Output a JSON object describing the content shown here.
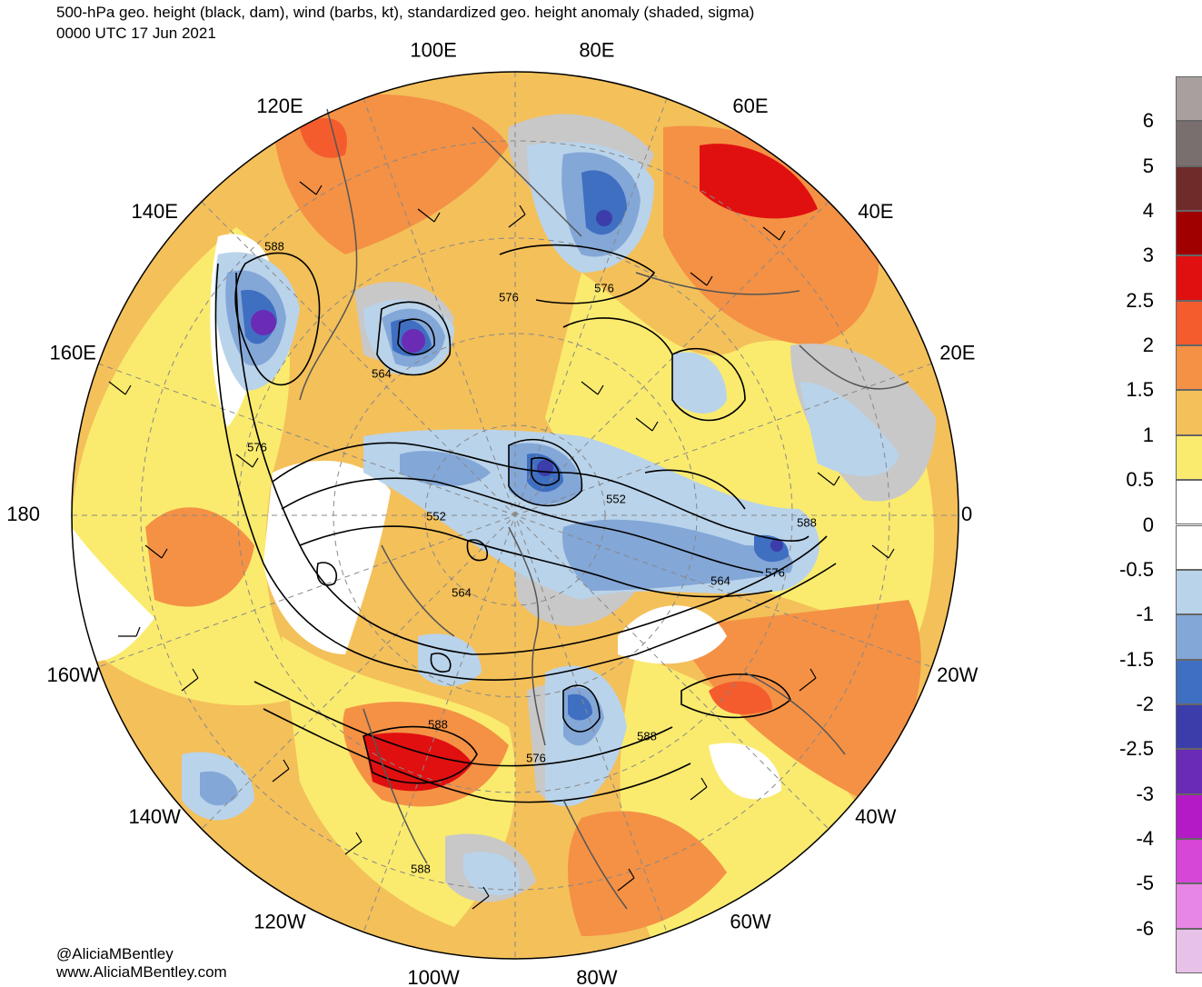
{
  "title_line1": "500-hPa geo. height (black, dam), wind (barbs, kt), standardized geo. height anomaly (shaded, sigma)",
  "title_line2": "0000 UTC 17 Jun 2021",
  "credit_handle": "@AliciaMBentley",
  "credit_url": "www.AliciaMBentley.com",
  "longitude_labels": [
    {
      "text": "100E",
      "angle_deg": 100
    },
    {
      "text": "80E",
      "angle_deg": 80
    },
    {
      "text": "120E",
      "angle_deg": 120
    },
    {
      "text": "60E",
      "angle_deg": 60
    },
    {
      "text": "140E",
      "angle_deg": 140
    },
    {
      "text": "40E",
      "angle_deg": 40
    },
    {
      "text": "160E",
      "angle_deg": 160
    },
    {
      "text": "20E",
      "angle_deg": 20
    },
    {
      "text": "180",
      "angle_deg": 180
    },
    {
      "text": "0",
      "angle_deg": 0
    },
    {
      "text": "160W",
      "angle_deg": 200
    },
    {
      "text": "20W",
      "angle_deg": 340
    },
    {
      "text": "140W",
      "angle_deg": 220
    },
    {
      "text": "40W",
      "angle_deg": 320
    },
    {
      "text": "120W",
      "angle_deg": 240
    },
    {
      "text": "60W",
      "angle_deg": 300
    },
    {
      "text": "100W",
      "angle_deg": 260
    },
    {
      "text": "80W",
      "angle_deg": 280
    }
  ],
  "contour_labels": [
    "588",
    "576",
    "576",
    "564",
    "576",
    "552",
    "552",
    "564",
    "564",
    "576",
    "588",
    "588",
    "576",
    "588",
    "588"
  ],
  "colorbar": {
    "colors": [
      "#a89f9f",
      "#7a6f6f",
      "#6f2a2a",
      "#a00000",
      "#e01010",
      "#f45c2e",
      "#f49145",
      "#f4c05a",
      "#faeb6e",
      "#ffffff",
      "#ffffff",
      "#b9d3ea",
      "#83a7d7",
      "#3f6fc1",
      "#3c3dab",
      "#6a2bb5",
      "#b41ac6",
      "#d647d8",
      "#e886e6",
      "#e8c1e9"
    ],
    "labels": [
      "6",
      "5",
      "4",
      "3",
      "2.5",
      "2",
      "1.5",
      "1",
      "0.5",
      "0",
      "-0.5",
      "-1",
      "-1.5",
      "-2",
      "-2.5",
      "-3",
      "-4",
      "-5",
      "-6"
    ]
  }
}
